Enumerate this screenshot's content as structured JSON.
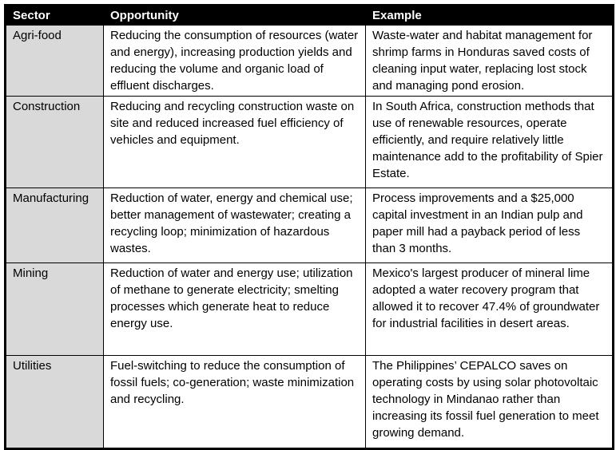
{
  "colors": {
    "header_bg": "#000000",
    "header_text": "#ffffff",
    "sector_bg": "#d9d9d9",
    "cell_bg": "#ffffff",
    "border": "#000000"
  },
  "header": {
    "sector": "Sector",
    "opportunity": "Opportunity",
    "example": "Example"
  },
  "rows": [
    {
      "sector": "Agri-food",
      "opportunity": "Reducing the consumption of resources (water and energy), increasing production yields and reducing the volume and organic load of effluent discharges.",
      "example": "Waste-water and habitat management for shrimp farms in Honduras saved costs of cleaning input water, replacing lost stock and managing pond erosion."
    },
    {
      "sector": "Construction",
      "opportunity": "Reducing and recycling construction waste on site and reduced increased fuel efficiency of vehicles and equipment.",
      "example": "In South Africa, construction methods that use of renewable resources, operate efficiently, and require relatively little maintenance add to the profitability of Spier Estate."
    },
    {
      "sector": "Manufacturing",
      "opportunity": "Reduction of water, energy and chemical use; better management of wastewater; creating a recycling loop; minimization of hazardous wastes.",
      "example": "Process improvements and a $25,000 capital investment in an Indian pulp and paper mill had a payback period of less than 3 months."
    },
    {
      "sector": "Mining",
      "opportunity": "Reduction of water and energy use; utilization of methane to generate electricity; smelting processes which generate heat to reduce energy use.",
      "example": "Mexico's largest producer of mineral lime adopted a water recovery program that allowed it to recover 47.4% of groundwater for industrial facilities in desert areas."
    },
    {
      "sector": "Utilities",
      "opportunity": "Fuel-switching to reduce the consumption of fossil fuels; co-generation; waste minimization and recycling.",
      "example": "The Philippines’ CEPALCO saves on operating costs by using solar photovoltaic technology in Mindanao rather than increasing its fossil fuel generation to meet growing demand."
    }
  ]
}
